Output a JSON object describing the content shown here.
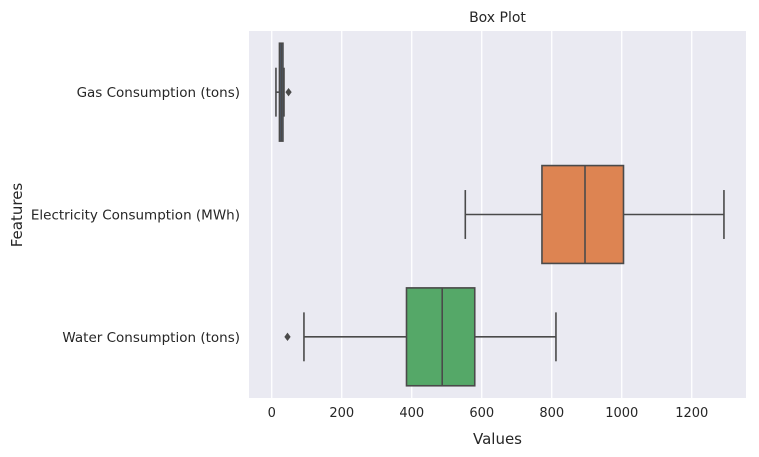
{
  "chart_data": {
    "type": "boxplot",
    "orientation": "horizontal",
    "title": "Box Plot",
    "xlabel": "Values",
    "ylabel": "Features",
    "xlim": [
      -65,
      1355
    ],
    "xticks": [
      0,
      200,
      400,
      600,
      800,
      1000,
      1200
    ],
    "grid": true,
    "background": "#eaeaf2",
    "grid_color": "#ffffff",
    "series": [
      {
        "name": "Gas Consumption (tons)",
        "color": "#4c72b0",
        "whisker_low": 12,
        "q1": 22,
        "median": 27,
        "q3": 32,
        "whisker_high": 35,
        "outliers": [
          48
        ]
      },
      {
        "name": "Electricity Consumption (MWh)",
        "color": "#dd8452",
        "whisker_low": 553,
        "q1": 772,
        "median": 895,
        "q3": 1005,
        "whisker_high": 1292,
        "outliers": []
      },
      {
        "name": "Water Consumption (tons)",
        "color": "#55a868",
        "whisker_low": 92,
        "q1": 385,
        "median": 487,
        "q3": 580,
        "whisker_high": 812,
        "outliers": [
          45
        ]
      }
    ]
  }
}
